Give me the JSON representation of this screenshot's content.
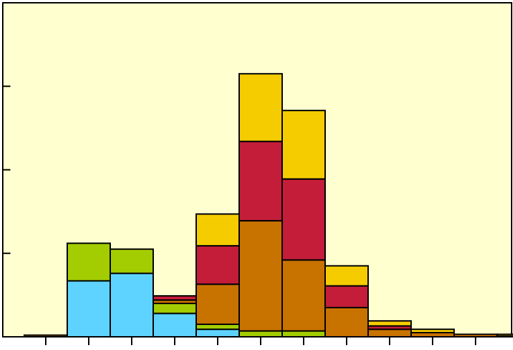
{
  "chart_data": {
    "type": "bar",
    "stacked": true,
    "histogram": true,
    "title": "",
    "xlabel": "",
    "ylabel": "",
    "grid": false,
    "legend": "none",
    "ylim": [
      0,
      400
    ],
    "y_ticks": [
      0,
      100,
      200,
      300
    ],
    "bins": 12,
    "series": [
      {
        "color": "#5fd3ff",
        "values": [
          0,
          67,
          76,
          28,
          9,
          0,
          0,
          0,
          0,
          0,
          0,
          0
        ]
      },
      {
        "color": "#a3cd00",
        "values": [
          0,
          45,
          29,
          12,
          6,
          7,
          7,
          0,
          0,
          0,
          0,
          0
        ]
      },
      {
        "color": "#c87200",
        "values": [
          2,
          0,
          0,
          4,
          48,
          132,
          85,
          35,
          9,
          5,
          3,
          1
        ]
      },
      {
        "color": "#c41d3a",
        "values": [
          0,
          0,
          0,
          5,
          46,
          95,
          97,
          26,
          4,
          0,
          0,
          0
        ]
      },
      {
        "color": "#f5cc00",
        "values": [
          0,
          0,
          0,
          0,
          38,
          81,
          82,
          24,
          6,
          4,
          0,
          2
        ]
      }
    ]
  }
}
